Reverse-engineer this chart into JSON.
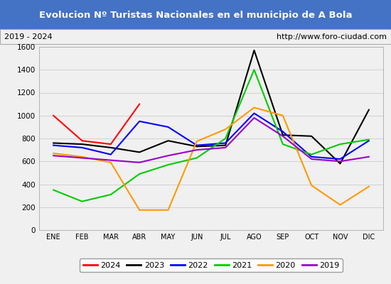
{
  "title": "Evolucion Nº Turistas Nacionales en el municipio de A Bola",
  "subtitle_left": "2019 - 2024",
  "subtitle_right": "http://www.foro-ciudad.com",
  "title_bg_color": "#4472c4",
  "title_text_color": "#ffffff",
  "months": [
    "ENE",
    "FEB",
    "MAR",
    "ABR",
    "MAY",
    "JUN",
    "JUL",
    "AGO",
    "SEP",
    "OCT",
    "NOV",
    "DIC"
  ],
  "ylim": [
    0,
    1600
  ],
  "yticks": [
    0,
    200,
    400,
    600,
    800,
    1000,
    1200,
    1400,
    1600
  ],
  "series": {
    "2024": {
      "color": "#ff0000",
      "data": [
        1000,
        780,
        750,
        1100,
        null,
        null,
        null,
        null,
        null,
        null,
        null,
        null
      ]
    },
    "2023": {
      "color": "#000000",
      "data": [
        760,
        750,
        720,
        680,
        780,
        730,
        740,
        1570,
        830,
        820,
        580,
        1050
      ]
    },
    "2022": {
      "color": "#0000ff",
      "data": [
        740,
        720,
        660,
        950,
        900,
        740,
        760,
        1020,
        860,
        640,
        620,
        780
      ]
    },
    "2021": {
      "color": "#00cc00",
      "data": [
        350,
        250,
        310,
        490,
        570,
        630,
        800,
        1400,
        750,
        660,
        750,
        790
      ]
    },
    "2020": {
      "color": "#ff9900",
      "data": [
        670,
        640,
        590,
        175,
        175,
        775,
        880,
        1070,
        1000,
        390,
        220,
        380
      ]
    },
    "2019": {
      "color": "#9900cc",
      "data": [
        650,
        630,
        610,
        590,
        650,
        700,
        720,
        980,
        820,
        620,
        600,
        640
      ]
    }
  }
}
